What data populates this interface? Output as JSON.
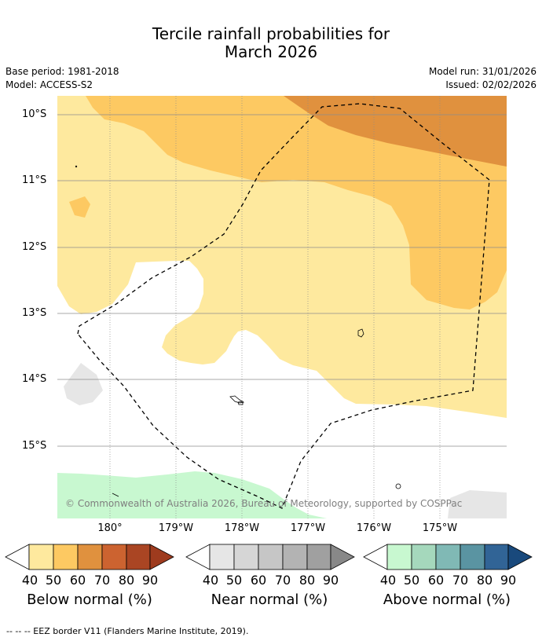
{
  "title": {
    "line1": "Tercile rainfall probabilities for",
    "line2": "March 2026"
  },
  "meta": {
    "base_period": "Base period: 1981-2018",
    "model": "Model: ACCESS-S2",
    "model_run": "Model run: 31/01/2026",
    "issued": "Issued: 02/02/2026"
  },
  "axes": {
    "latitude_labels": [
      "10°S",
      "11°S",
      "12°S",
      "13°S",
      "14°S",
      "15°S"
    ],
    "longitude_labels": [
      "180°",
      "179°W",
      "178°W",
      "177°W",
      "176°W",
      "175°W"
    ]
  },
  "copyright": "© Commonwealth of Australia 2026, Bureau of Meteorology, supported by COSPPac",
  "legends": [
    {
      "label": "Below normal (%)",
      "ticks": [
        "40",
        "50",
        "60",
        "70",
        "80",
        "90"
      ],
      "colors": [
        "#fee99e",
        "#fdc962",
        "#e0913e",
        "#cc6330",
        "#aa4523",
        "#9e3b1e"
      ]
    },
    {
      "label": "Near normal (%)",
      "ticks": [
        "40",
        "50",
        "60",
        "70",
        "80",
        "90"
      ],
      "colors": [
        "#e6e6e6",
        "#d6d6d6",
        "#c6c6c6",
        "#b3b3b3",
        "#a0a0a0",
        "#888888"
      ]
    },
    {
      "label": "Above normal (%)",
      "ticks": [
        "40",
        "50",
        "60",
        "70",
        "80",
        "90"
      ],
      "colors": [
        "#c8f8d0",
        "#a5d8bc",
        "#80b9b5",
        "#5a94a2",
        "#316496",
        "#19497c"
      ]
    }
  ],
  "footnote": "--  --  -- EEZ border V11 (Flanders Marine Institute, 2019).",
  "colors": {
    "below_40": "#fee99e",
    "below_50": "#fdc962",
    "below_60": "#e0913e",
    "near_40": "#e6e6e6",
    "above_40": "#c8f8d0",
    "gridline": "#8c8c8c"
  }
}
